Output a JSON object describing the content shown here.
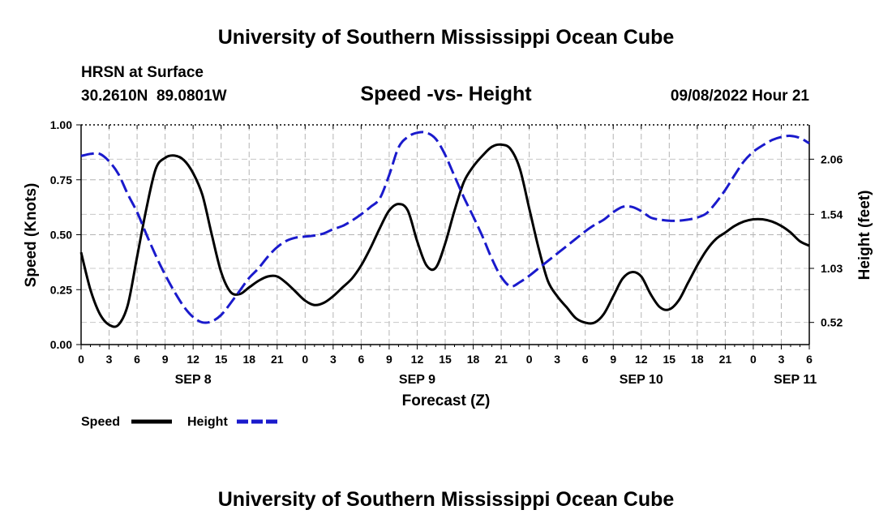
{
  "header": {
    "title": "University of Southern Mississippi Ocean Cube",
    "station": "HRSN at Surface",
    "coords": "30.2610N  89.0801W",
    "subtitle": "Speed -vs- Height",
    "datetime": "09/08/2022 Hour 21"
  },
  "footer": {
    "title": "University of Southern Mississippi Ocean Cube"
  },
  "chart_data": {
    "type": "line",
    "title": "Speed -vs- Height",
    "xlabel": "Forecast (Z)",
    "ylabel": "Speed (Knots)",
    "y2label": "Height (feet)",
    "xlim": [
      0,
      78
    ],
    "ylim": [
      0,
      1
    ],
    "y2lim": [
      0.311,
      2.384
    ],
    "x_tick_labels": [
      "0",
      "3",
      "6",
      "9",
      "12",
      "15",
      "18",
      "21",
      "0",
      "3",
      "6",
      "9",
      "12",
      "15",
      "18",
      "21",
      "0",
      "3",
      "6",
      "9",
      "12",
      "15",
      "18",
      "21",
      "0",
      "3",
      "6"
    ],
    "y_tick_labels": [
      "0.00",
      "0.25",
      "0.50",
      "0.75",
      "1.00"
    ],
    "y2_ticks": [
      0.52,
      1.03,
      1.54,
      2.06
    ],
    "y2_tick_labels": [
      "0.52",
      "1.03",
      "1.54",
      "2.06"
    ],
    "day_labels": [
      {
        "label": "SEP 8",
        "x": 12
      },
      {
        "label": "SEP 9",
        "x": 36
      },
      {
        "label": "SEP 10",
        "x": 60
      },
      {
        "label": "SEP 11",
        "x": 76.5
      }
    ],
    "grid": true,
    "legend": "bottom-left",
    "colors": {
      "speed": "#000000",
      "height": "#1a1acc"
    },
    "series": [
      {
        "name": "Speed",
        "axis": "left",
        "x": [
          0,
          1,
          2,
          3,
          4,
          5,
          6,
          7,
          8,
          9,
          10,
          11,
          12,
          13,
          14,
          15,
          16,
          17,
          18,
          19,
          20,
          21,
          22,
          23,
          24,
          25,
          26,
          27,
          28,
          29,
          30,
          31,
          32,
          33,
          34,
          35,
          36,
          37,
          38,
          39,
          40,
          41,
          42,
          43,
          44,
          45,
          46,
          47,
          48,
          49,
          50,
          51,
          52,
          53,
          54,
          55,
          56,
          57,
          58,
          59,
          60,
          61,
          62,
          63,
          64,
          65,
          66,
          67,
          68,
          69,
          70,
          71,
          72,
          73,
          74,
          75,
          76,
          77,
          78
        ],
        "values": [
          0.42,
          0.25,
          0.14,
          0.09,
          0.09,
          0.18,
          0.4,
          0.62,
          0.8,
          0.85,
          0.86,
          0.84,
          0.78,
          0.68,
          0.5,
          0.33,
          0.24,
          0.23,
          0.26,
          0.29,
          0.31,
          0.31,
          0.28,
          0.24,
          0.2,
          0.18,
          0.19,
          0.22,
          0.26,
          0.3,
          0.36,
          0.44,
          0.53,
          0.61,
          0.64,
          0.61,
          0.47,
          0.36,
          0.35,
          0.46,
          0.61,
          0.74,
          0.81,
          0.86,
          0.9,
          0.91,
          0.89,
          0.8,
          0.62,
          0.44,
          0.29,
          0.22,
          0.17,
          0.12,
          0.1,
          0.1,
          0.14,
          0.22,
          0.3,
          0.33,
          0.31,
          0.23,
          0.17,
          0.16,
          0.2,
          0.28,
          0.36,
          0.43,
          0.48,
          0.51,
          0.54,
          0.56,
          0.57,
          0.57,
          0.56,
          0.54,
          0.51,
          0.47,
          0.45
        ]
      },
      {
        "name": "Height",
        "axis": "right",
        "x": [
          0,
          1,
          2,
          3,
          4,
          5,
          6,
          7,
          8,
          9,
          10,
          11,
          12,
          13,
          14,
          15,
          16,
          17,
          18,
          19,
          20,
          21,
          22,
          23,
          24,
          25,
          26,
          27,
          28,
          29,
          30,
          31,
          32,
          33,
          34,
          35,
          36,
          37,
          38,
          39,
          40,
          41,
          42,
          43,
          44,
          45,
          46,
          47,
          48,
          49,
          50,
          51,
          52,
          53,
          54,
          55,
          56,
          57,
          58,
          59,
          60,
          61,
          62,
          63,
          64,
          65,
          66,
          67,
          68,
          69,
          70,
          71,
          72,
          73,
          74,
          75,
          76,
          77,
          78
        ],
        "values": [
          2.09,
          2.11,
          2.11,
          2.04,
          1.92,
          1.73,
          1.56,
          1.35,
          1.15,
          0.97,
          0.81,
          0.67,
          0.57,
          0.52,
          0.53,
          0.59,
          0.7,
          0.82,
          0.94,
          1.03,
          1.14,
          1.23,
          1.29,
          1.32,
          1.33,
          1.34,
          1.36,
          1.4,
          1.43,
          1.48,
          1.54,
          1.61,
          1.69,
          1.91,
          2.17,
          2.27,
          2.31,
          2.31,
          2.25,
          2.1,
          1.9,
          1.7,
          1.52,
          1.33,
          1.12,
          0.95,
          0.86,
          0.9,
          0.96,
          1.03,
          1.1,
          1.17,
          1.24,
          1.31,
          1.38,
          1.44,
          1.49,
          1.56,
          1.61,
          1.61,
          1.57,
          1.51,
          1.49,
          1.48,
          1.48,
          1.49,
          1.51,
          1.55,
          1.65,
          1.77,
          1.91,
          2.04,
          2.13,
          2.19,
          2.24,
          2.27,
          2.28,
          2.26,
          2.21
        ]
      }
    ]
  },
  "legend": {
    "items": [
      {
        "label": "Speed"
      },
      {
        "label": "Height"
      }
    ]
  }
}
